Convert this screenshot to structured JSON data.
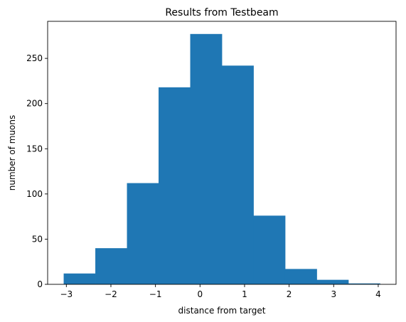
{
  "chart_data": {
    "type": "bar",
    "title": "Results from Testbeam",
    "xlabel": "distance from target",
    "ylabel": "number of muons",
    "bin_edges": [
      -3.06,
      -2.35,
      -1.64,
      -0.93,
      -0.22,
      0.49,
      1.2,
      1.91,
      2.62,
      3.33,
      4.04
    ],
    "values": [
      12,
      40,
      112,
      218,
      277,
      242,
      76,
      17,
      5,
      1
    ],
    "xlim": [
      -3.42,
      4.4
    ],
    "ylim": [
      0,
      291
    ],
    "xticks": [
      -3,
      -2,
      -1,
      0,
      1,
      2,
      3,
      4
    ],
    "xtick_labels": [
      "−3",
      "−2",
      "−1",
      "0",
      "1",
      "2",
      "3",
      "4"
    ],
    "yticks": [
      0,
      50,
      100,
      150,
      200,
      250
    ],
    "ytick_labels": [
      "0",
      "50",
      "100",
      "150",
      "200",
      "250"
    ],
    "grid": false,
    "bar_color": "#1f77b4"
  }
}
